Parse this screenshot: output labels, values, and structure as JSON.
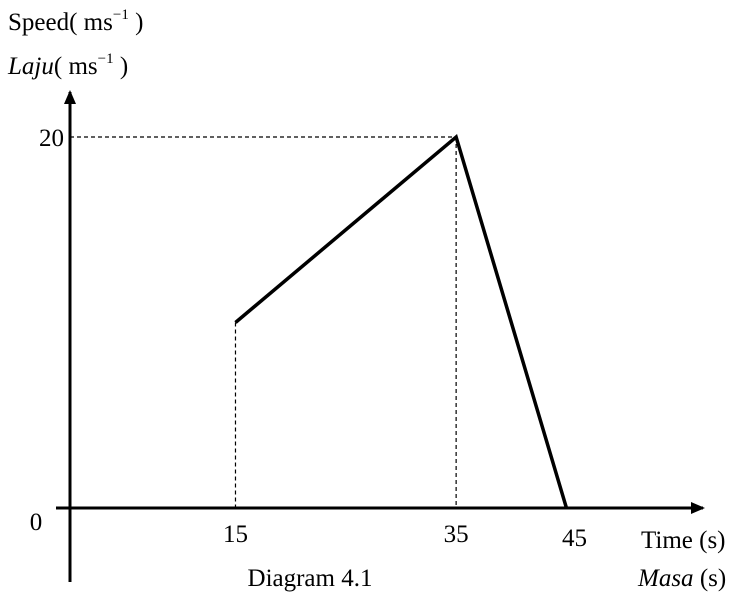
{
  "chart_data": {
    "type": "line",
    "title": "",
    "caption": "Diagram 4.1",
    "ylabel": {
      "en_prefix": "Speed(",
      "ms_prefix": "Laju",
      "unit_open": "( ",
      "unit_base": "ms",
      "unit_exp": "−1",
      "unit_close": " )"
    },
    "xlabel": {
      "en": "Time (s)",
      "ms_word": "Masa",
      "ms_unit": " (s)"
    },
    "origin_label": "0",
    "x_ticks": [
      "15",
      "35",
      "45"
    ],
    "y_ticks": [
      "20"
    ],
    "xlim": [
      0,
      62
    ],
    "ylim": [
      0,
      20
    ],
    "series": [
      {
        "x": [
          15,
          35,
          45
        ],
        "y": [
          10,
          20,
          0
        ]
      }
    ],
    "guides": [
      {
        "kind": "vertical",
        "x": 15,
        "y": 10
      },
      {
        "kind": "vertical",
        "x": 35,
        "y": 20
      },
      {
        "kind": "horizontal",
        "x": 35,
        "y": 20
      }
    ],
    "grid": false,
    "legend": "none"
  }
}
